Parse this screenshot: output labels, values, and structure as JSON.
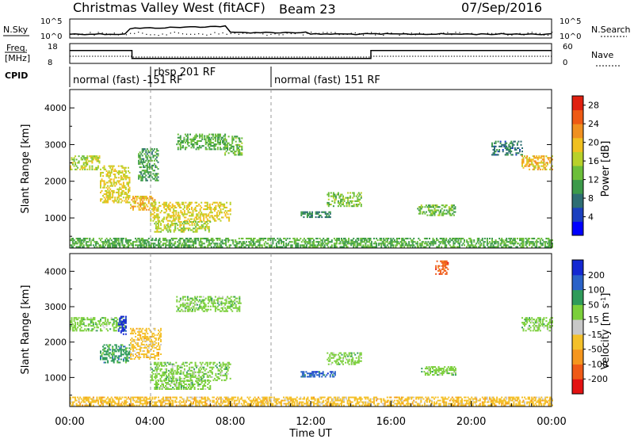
{
  "header": {
    "title": "Christmas Valley West (fitACF)",
    "beam": "Beam 23",
    "date": "07/Sep/2016"
  },
  "top_panel": {
    "left_label": "N.Sky",
    "right_label": "N.Search",
    "left_ticks": [
      "10^5",
      "10^0"
    ],
    "right_ticks": [
      "10^5",
      "10^0"
    ]
  },
  "freq_panel": {
    "left_label_1": "Freq.",
    "left_label_2": "[MHz]",
    "right_label": "Nave",
    "left_ticks": [
      "18",
      "8"
    ],
    "right_ticks": [
      "60",
      "0"
    ],
    "freq_segments": [
      {
        "start": 0,
        "end": 3.1,
        "value": 14.5
      },
      {
        "start": 3.1,
        "end": 15.0,
        "value": 10.5
      },
      {
        "start": 15.0,
        "end": 24,
        "value": 14.5
      }
    ]
  },
  "cpid": {
    "label": "CPID",
    "segments": [
      {
        "start_hour": 0.0,
        "text": "normal (fast) -151 RF"
      },
      {
        "start_hour": 3.85,
        "text": "rbsp 201 RF"
      },
      {
        "start_hour": 9.75,
        "text": "normal (fast) 151 RF"
      }
    ]
  },
  "chart_data": [
    {
      "type": "heatmap",
      "parameter": "power",
      "ylabel": "Slant Range [km]",
      "ylim": [
        180,
        4500
      ],
      "xlim_hours": [
        0,
        24
      ],
      "yticks": [
        1000,
        2000,
        3000,
        4000
      ],
      "colorbar_label": "Power [dB]",
      "colorbar_ticks": [
        4,
        8,
        12,
        16,
        20,
        24,
        28
      ],
      "colorbar_range": [
        0,
        30
      ],
      "colorbar_colors": [
        "#0000ff",
        "#1a3fbf",
        "#2e6e73",
        "#3c9a4a",
        "#6cbf3a",
        "#b8d12a",
        "#f0c020",
        "#f09020",
        "#ee5a14",
        "#e02010"
      ],
      "echo_regions": [
        {
          "t0": 0.0,
          "t1": 1.5,
          "r0": 2300,
          "r1": 2700,
          "v": 16
        },
        {
          "t0": 1.5,
          "t1": 3.0,
          "r0": 1400,
          "r1": 2400,
          "v": 18
        },
        {
          "t0": 3.0,
          "t1": 4.2,
          "r0": 1200,
          "r1": 1600,
          "v": 20
        },
        {
          "t0": 4.0,
          "t1": 8.0,
          "r0": 900,
          "r1": 1400,
          "v": 18
        },
        {
          "t0": 4.2,
          "t1": 7.0,
          "r0": 600,
          "r1": 900,
          "v": 16
        },
        {
          "t0": 5.3,
          "t1": 7.7,
          "r0": 2850,
          "r1": 3300,
          "v": 12
        },
        {
          "t0": 7.7,
          "t1": 8.6,
          "r0": 2700,
          "r1": 3200,
          "v": 13
        },
        {
          "t0": 3.4,
          "t1": 4.4,
          "r0": 2000,
          "r1": 2900,
          "v": 11
        },
        {
          "t0": 12.8,
          "t1": 14.5,
          "r0": 1300,
          "r1": 1700,
          "v": 14
        },
        {
          "t0": 11.5,
          "t1": 13.0,
          "r0": 1000,
          "r1": 1150,
          "v": 9
        },
        {
          "t0": 17.3,
          "t1": 19.2,
          "r0": 1050,
          "r1": 1350,
          "v": 13
        },
        {
          "t0": 21.0,
          "t1": 22.5,
          "r0": 2700,
          "r1": 3100,
          "v": 8
        },
        {
          "t0": 22.5,
          "t1": 24.0,
          "r0": 2300,
          "r1": 2700,
          "v": 20
        },
        {
          "t0": 0.0,
          "t1": 24.0,
          "r0": 190,
          "r1": 420,
          "v": 12
        }
      ]
    },
    {
      "type": "heatmap",
      "parameter": "velocity",
      "ylabel": "Slant Range [km]",
      "xlabel": "Time UT",
      "ylim": [
        180,
        4500
      ],
      "xlim_hours": [
        0,
        24
      ],
      "yticks": [
        1000,
        2000,
        3000,
        4000
      ],
      "xtick_labels": [
        "00:00",
        "04:00",
        "08:00",
        "12:00",
        "16:00",
        "20:00",
        "00:00"
      ],
      "colorbar_label": "Velocity [m s^-1]",
      "colorbar_ticks": [
        "200",
        "100",
        "50",
        "15",
        "-15",
        "-50",
        "-100",
        "-200"
      ],
      "colorbar_colors": [
        "#1428d2",
        "#2a62c8",
        "#2f9b5a",
        "#7bcf3a",
        "#c8c8c8",
        "#f4c02a",
        "#f5961e",
        "#ef5a16",
        "#e31212"
      ],
      "echo_regions": [
        {
          "t0": 0.0,
          "t1": 2.8,
          "r0": 2300,
          "r1": 2700,
          "v": "15"
        },
        {
          "t0": 2.4,
          "t1": 2.8,
          "r0": 2200,
          "r1": 2700,
          "v": "200"
        },
        {
          "t0": 1.5,
          "t1": 3.0,
          "r0": 1400,
          "r1": 1900,
          "v": "50"
        },
        {
          "t0": 3.0,
          "t1": 4.5,
          "r0": 1500,
          "r1": 2400,
          "v": "-50"
        },
        {
          "t0": 4.0,
          "t1": 8.0,
          "r0": 900,
          "r1": 1400,
          "v": "15"
        },
        {
          "t0": 4.2,
          "t1": 7.0,
          "r0": 650,
          "r1": 900,
          "v": "15"
        },
        {
          "t0": 5.3,
          "t1": 8.5,
          "r0": 2850,
          "r1": 3300,
          "v": "15"
        },
        {
          "t0": 11.5,
          "t1": 13.2,
          "r0": 1000,
          "r1": 1150,
          "v": "100"
        },
        {
          "t0": 12.8,
          "t1": 14.5,
          "r0": 1350,
          "r1": 1700,
          "v": "15"
        },
        {
          "t0": 17.5,
          "t1": 19.2,
          "r0": 1050,
          "r1": 1300,
          "v": "15"
        },
        {
          "t0": 18.2,
          "t1": 18.8,
          "r0": 3900,
          "r1": 4300,
          "v": "-200"
        },
        {
          "t0": 22.5,
          "t1": 24.0,
          "r0": 2300,
          "r1": 2700,
          "v": "15"
        },
        {
          "t0": 0.0,
          "t1": 24.0,
          "r0": 190,
          "r1": 420,
          "v": "-50"
        }
      ]
    }
  ]
}
